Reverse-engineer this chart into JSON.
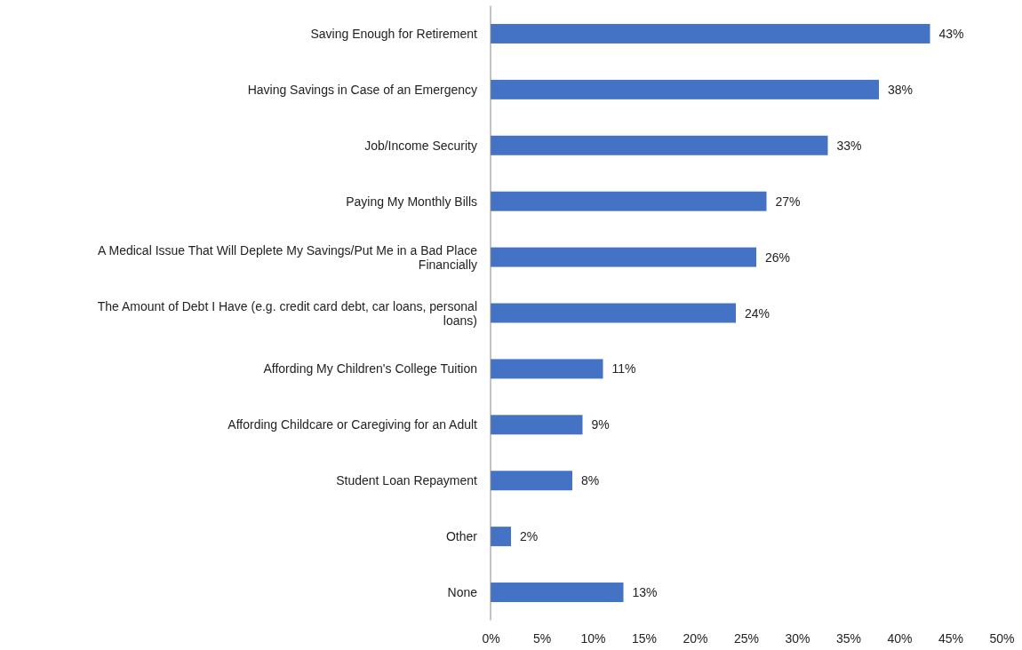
{
  "chart_data": {
    "type": "bar",
    "orientation": "horizontal",
    "color": "#4472c4",
    "categories": [
      "Saving Enough for Retirement",
      "Having Savings in Case of an Emergency",
      "Job/Income Security",
      "Paying My Monthly Bills",
      "A Medical Issue That Will Deplete My Savings/Put Me in a Bad Place Financially",
      "The Amount of Debt I Have (e.g. credit card debt, car loans, personal loans)",
      "Affording My Children's College Tuition",
      "Affording Childcare or Caregiving for an Adult",
      "Student Loan Repayment",
      "Other",
      "None"
    ],
    "values": [
      43,
      38,
      33,
      27,
      26,
      24,
      11,
      9,
      8,
      2,
      13
    ],
    "value_labels": [
      "43%",
      "38%",
      "33%",
      "27%",
      "26%",
      "24%",
      "11%",
      "9%",
      "8%",
      "2%",
      "13%"
    ],
    "xlim": [
      0,
      50
    ],
    "xticks": [
      {
        "value": 0,
        "label": "0%"
      },
      {
        "value": 5,
        "label": "5%"
      },
      {
        "value": 10,
        "label": "10%"
      },
      {
        "value": 15,
        "label": "15%"
      },
      {
        "value": 20,
        "label": "20%"
      },
      {
        "value": 25,
        "label": "25%"
      },
      {
        "value": 30,
        "label": "30%"
      },
      {
        "value": 35,
        "label": "35%"
      },
      {
        "value": 40,
        "label": "40%"
      },
      {
        "value": 45,
        "label": "45%"
      },
      {
        "value": 50,
        "label": "50%"
      }
    ],
    "grid": false
  }
}
